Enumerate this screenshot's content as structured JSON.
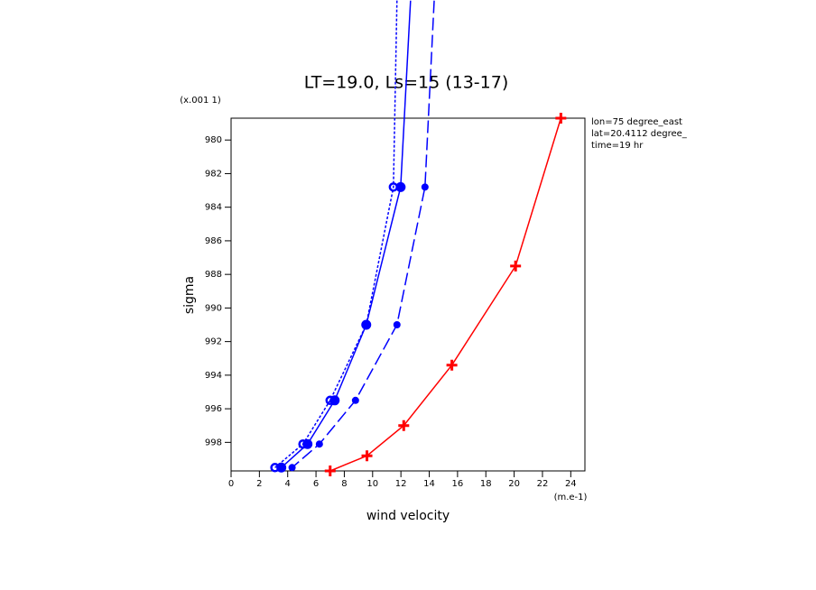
{
  "chart_data": {
    "type": "line",
    "title": "LT=19.0, Ls=15 (13-17)",
    "y_units": "(x.001 1)",
    "y_label": "sigma",
    "x_label": "wind velocity",
    "x_units": "(m.e-1)",
    "annotations": [
      "lon=75 degree_east",
      "lat=20.4112 degree_",
      "time=19 hr"
    ],
    "xlim": [
      0,
      25
    ],
    "xticks": [
      0,
      2,
      4,
      6,
      8,
      10,
      12,
      14,
      16,
      18,
      20,
      22,
      24
    ],
    "ylim": [
      999.7,
      978.7
    ],
    "yticks": [
      980,
      982,
      984,
      986,
      988,
      990,
      992,
      994,
      996,
      998
    ],
    "series": [
      {
        "color": "#0000ff",
        "dash": "none",
        "marker": "dot",
        "x": [
          12.68,
          11.98,
          9.55,
          7.32,
          5.4,
          3.55
        ],
        "y": [
          971.7,
          982.8,
          991.0,
          995.5,
          998.1,
          999.5
        ]
      },
      {
        "color": "#0000ff",
        "dash": "3,2",
        "marker": "ring",
        "x": [
          11.72,
          11.47,
          9.55,
          7.0,
          5.08,
          3.1
        ],
        "y": [
          971.7,
          982.8,
          991.0,
          995.5,
          998.1,
          999.5
        ]
      },
      {
        "color": "#0000ff",
        "dash": "14,5",
        "marker": "blob",
        "x": [
          14.35,
          13.7,
          11.72,
          8.79,
          6.24,
          4.31
        ],
        "y": [
          971.7,
          982.8,
          991.0,
          995.5,
          998.1,
          999.5
        ]
      },
      {
        "color": "#ff0000",
        "dash": "none",
        "marker": "plus",
        "x": [
          23.3,
          20.1,
          15.6,
          12.2,
          9.6,
          7.0
        ],
        "y": [
          978.7,
          987.5,
          993.4,
          997.0,
          998.8,
          999.7
        ]
      }
    ]
  }
}
